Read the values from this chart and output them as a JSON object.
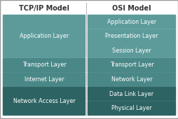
{
  "title_left": "TCP/IP Model",
  "title_right": "OSI Model",
  "bg_color": "#d4d4d4",
  "outer_border_color": "#999999",
  "tcp_layers": [
    {
      "label": "Application Layer",
      "rows": 3,
      "color": "#5d9b9b"
    },
    {
      "label": "Transport Layer",
      "rows": 1,
      "color": "#4a8888"
    },
    {
      "label": "Internet Layer",
      "rows": 1,
      "color": "#4a8888"
    },
    {
      "label": "Network Access Layer",
      "rows": 2,
      "color": "#2d6363"
    }
  ],
  "osi_layers": [
    {
      "label": "Application Layer",
      "color": "#5d9b9b"
    },
    {
      "label": "Presentation Layer",
      "color": "#5d9b9b"
    },
    {
      "label": "Session Layer",
      "color": "#5d9b9b"
    },
    {
      "label": "Transport Layer",
      "color": "#4a8888"
    },
    {
      "label": "Network Layer",
      "color": "#4a8888"
    },
    {
      "label": "Data Link Layer",
      "color": "#2d6363"
    },
    {
      "label": "Physical Layer",
      "color": "#2d6363"
    }
  ],
  "text_color": "#ffffff",
  "title_color": "#333333",
  "separator_color": "#bbbbbb",
  "fig_w": 2.55,
  "fig_h": 1.7,
  "dpi": 100
}
